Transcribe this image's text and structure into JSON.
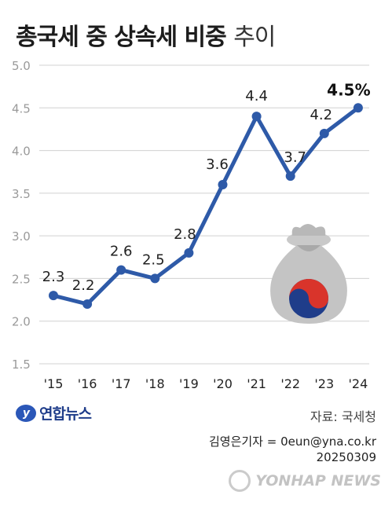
{
  "title": {
    "main": "총국세 중 상속세 비중",
    "suffix": "추이"
  },
  "chart_data": {
    "type": "line",
    "categories": [
      "'15",
      "'16",
      "'17",
      "'18",
      "'19",
      "'20",
      "'21",
      "'22",
      "'23",
      "'24"
    ],
    "values": [
      2.3,
      2.2,
      2.6,
      2.5,
      2.8,
      3.6,
      4.4,
      3.7,
      4.2,
      4.5
    ],
    "value_labels": [
      "2.3",
      "2.2",
      "2.6",
      "2.5",
      "2.8",
      "3.6",
      "4.4",
      "3.7",
      "4.2",
      "4.5%"
    ],
    "yticks": [
      "1.5",
      "2.0",
      "2.5",
      "3.0",
      "3.5",
      "4.0",
      "4.5",
      "5.0"
    ],
    "ylim": [
      1.5,
      5.0
    ],
    "grid": true,
    "colors": {
      "line": "#2e5aa8",
      "grid": "#d0d0d0",
      "highlight_label": "#111111"
    }
  },
  "footer": {
    "logo": "연합뉴스",
    "source": "자료: 국세청",
    "reporter": "김영은기자 = 0eun@yna.co.kr",
    "date": "20250309",
    "watermark": "YONHAP NEWS"
  },
  "illustration": {
    "icon": "money-bag-icon"
  }
}
